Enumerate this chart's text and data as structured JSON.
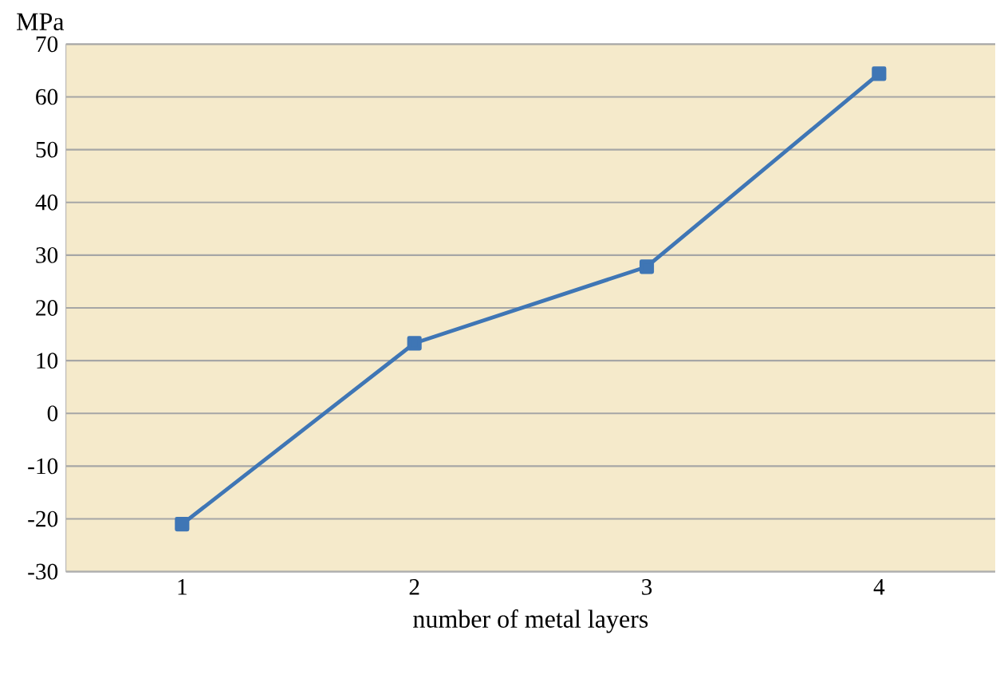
{
  "chart_data": {
    "type": "line",
    "xlabel": "number of metal layers",
    "ylabel": "MPa",
    "categories": [
      "1",
      "2",
      "3",
      "4"
    ],
    "series": [
      {
        "color": "#3f76b5",
        "values": [
          -21,
          13.3,
          27.8,
          64.4
        ]
      }
    ],
    "ylim": [
      -30,
      70
    ],
    "yticks": [
      -30,
      -20,
      -10,
      0,
      10,
      20,
      30,
      40,
      50,
      60,
      70
    ],
    "grid": "y",
    "marker": "square",
    "line_style": "solid"
  }
}
